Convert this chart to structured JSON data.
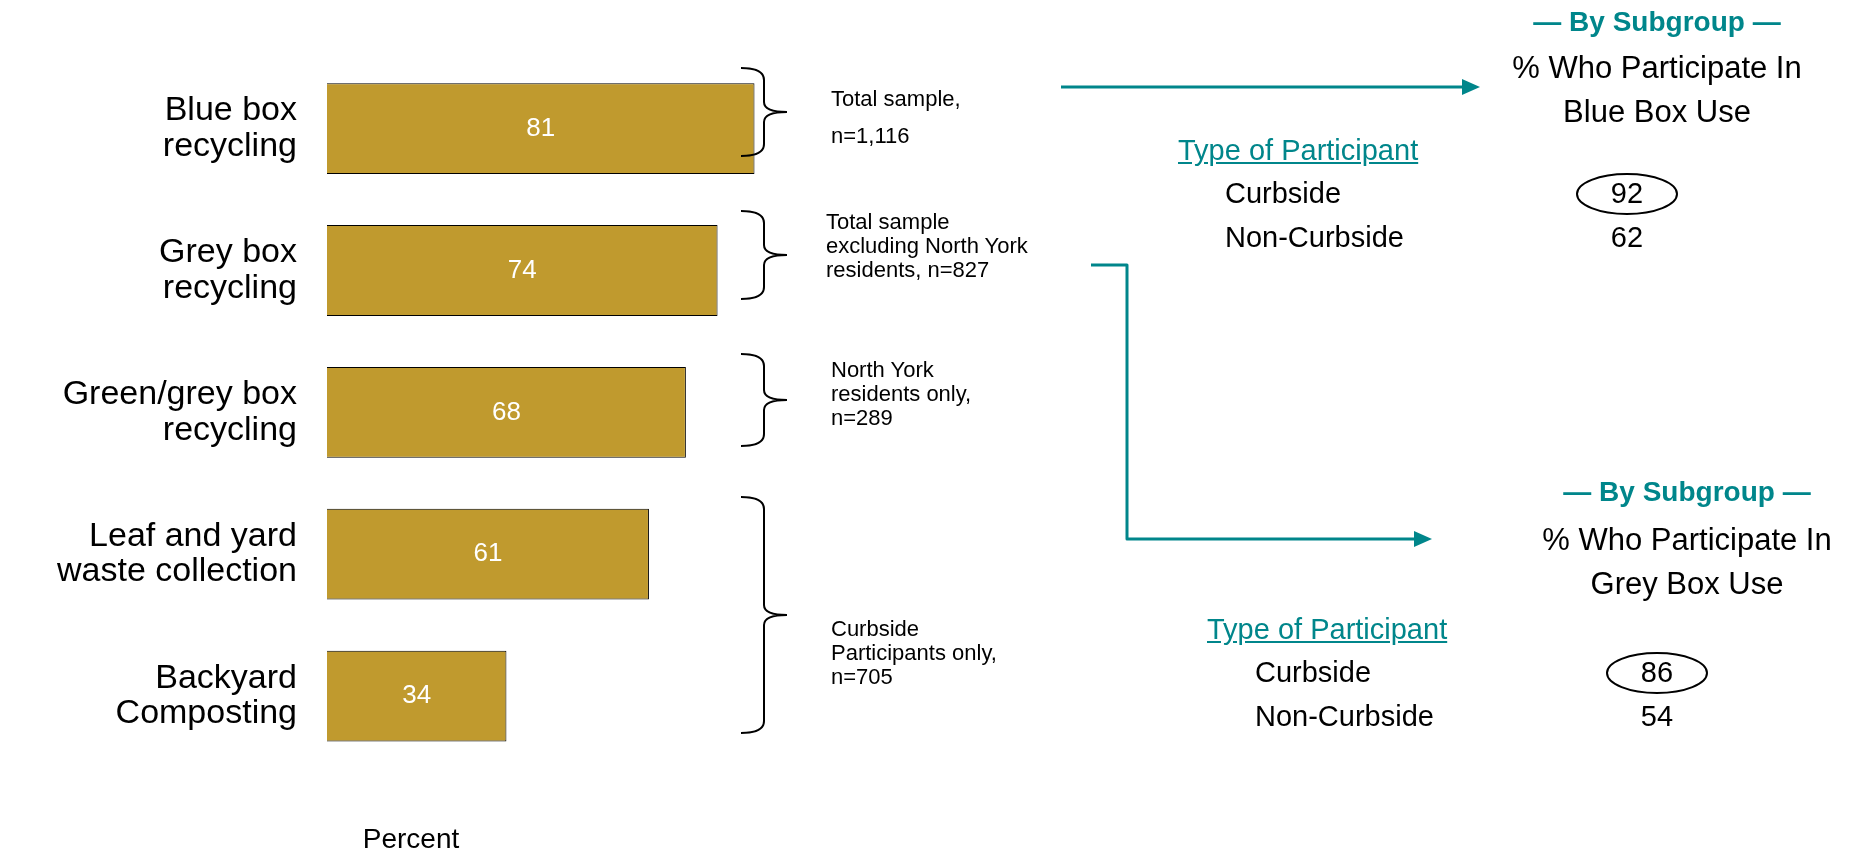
{
  "chart_data": {
    "type": "bar",
    "orientation": "horizontal",
    "xlabel": "Percent",
    "categories": [
      "Blue box recycling",
      "Grey box recycling",
      "Green/grey box recycling",
      "Leaf and yard waste collection",
      "Backyard Composting"
    ],
    "values": [
      81,
      74,
      68,
      61,
      34
    ],
    "color": "#c09a2e",
    "data_labels": true,
    "legend": false,
    "annotations": [
      "Total sample, n=1,116",
      "Total sample excluding North York residents, n=827",
      "North York residents only, n=289",
      "Curbside Participants only, n=705",
      "— By Subgroup —",
      "% Who Participate In Blue Box Use",
      "Type of Participant",
      "Curbside",
      "Non-Curbside",
      "92",
      "62",
      "— By Subgroup —",
      "% Who Participate In Grey Box Use",
      "Type of Participant",
      "Curbside",
      "Non-Curbside",
      "86",
      "54"
    ]
  }
}
